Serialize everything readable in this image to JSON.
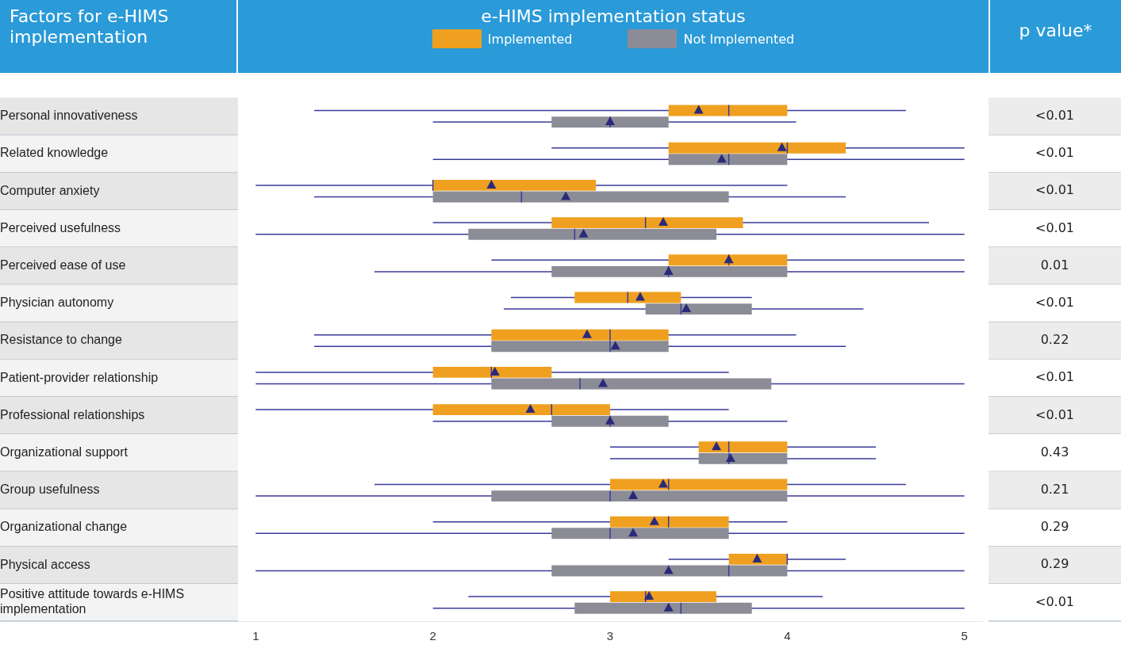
{
  "chart_data": {
    "type": "box",
    "orientation": "horizontal",
    "legend_title": "e-HIMS implementation status",
    "ylabel": "Factors for e-HIMS implementation",
    "y2label": "p value*",
    "categories": [
      "Personal innovativeness",
      "Related knowledge",
      "Computer anxiety",
      "Perceived usefulness",
      "Perceived ease of use",
      "Physician autonomy",
      "Resistance to change",
      "Patient-provider relationship",
      "Professional relationships",
      "Organizational support",
      "Group usefulness",
      "Organizational change",
      "Physical access",
      "Positive attitude towards e-HIMS implementation"
    ],
    "xlim": [
      0.9,
      5.1
    ],
    "xticks": [
      1,
      2,
      3,
      4,
      5
    ],
    "legend": "top",
    "grid": false,
    "series": [
      {
        "name": "Implemented",
        "color": "#f0a020",
        "boxes": [
          {
            "low": 1.33,
            "q1": 3.33,
            "median": 3.67,
            "q3": 4,
            "high": 4.67,
            "mean": 3.5
          },
          {
            "low": 2.67,
            "q1": 3.33,
            "median": 4,
            "q3": 4.33,
            "high": 5,
            "mean": 3.97
          },
          {
            "low": 1,
            "q1": 2,
            "median": 2,
            "q3": 2.92,
            "high": 4,
            "mean": 2.33
          },
          {
            "low": 2,
            "q1": 2.67,
            "median": 3.2,
            "q3": 3.75,
            "high": 4.8,
            "mean": 3.3
          },
          {
            "low": 2.33,
            "q1": 3.33,
            "median": 3.67,
            "q3": 4,
            "high": 5,
            "mean": 3.67
          },
          {
            "low": 2.44,
            "q1": 2.8,
            "median": 3.1,
            "q3": 3.4,
            "high": 3.8,
            "mean": 3.17
          },
          {
            "low": 1.33,
            "q1": 2.33,
            "median": 3,
            "q3": 3.33,
            "high": 4.05,
            "mean": 2.87
          },
          {
            "low": 1,
            "q1": 2,
            "median": 2.33,
            "q3": 2.67,
            "high": 3.67,
            "mean": 2.35
          },
          {
            "low": 1,
            "q1": 2,
            "median": 2.67,
            "q3": 3,
            "high": 3.67,
            "mean": 2.55
          },
          {
            "low": 3,
            "q1": 3.5,
            "median": 3.67,
            "q3": 4,
            "high": 4.5,
            "mean": 3.6
          },
          {
            "low": 1.67,
            "q1": 3,
            "median": 3.33,
            "q3": 4,
            "high": 4.67,
            "mean": 3.3
          },
          {
            "low": 2,
            "q1": 3,
            "median": 3.33,
            "q3": 3.67,
            "high": 4,
            "mean": 3.25
          },
          {
            "low": 3.33,
            "q1": 3.67,
            "median": 4,
            "q3": 4,
            "high": 4.33,
            "mean": 3.83
          },
          {
            "low": 2.2,
            "q1": 3,
            "median": 3.2,
            "q3": 3.6,
            "high": 4.2,
            "mean": 3.22
          }
        ]
      },
      {
        "name": "Not Implemented",
        "color": "#8c8c96",
        "boxes": [
          {
            "low": 2,
            "q1": 2.67,
            "median": 3,
            "q3": 3.33,
            "high": 4.05,
            "mean": 3
          },
          {
            "low": 2,
            "q1": 3.33,
            "median": 3.67,
            "q3": 4,
            "high": 5,
            "mean": 3.63
          },
          {
            "low": 1.33,
            "q1": 2,
            "median": 2.5,
            "q3": 3.67,
            "high": 4.33,
            "mean": 2.75
          },
          {
            "low": 1,
            "q1": 2.2,
            "median": 2.8,
            "q3": 3.6,
            "high": 5,
            "mean": 2.85
          },
          {
            "low": 1.67,
            "q1": 2.67,
            "median": 3.33,
            "q3": 4,
            "high": 5,
            "mean": 3.33
          },
          {
            "low": 2.4,
            "q1": 3.2,
            "median": 3.4,
            "q3": 3.8,
            "high": 4.43,
            "mean": 3.43
          },
          {
            "low": 1.33,
            "q1": 2.33,
            "median": 3,
            "q3": 3.33,
            "high": 4.33,
            "mean": 3.03
          },
          {
            "low": 1,
            "q1": 2.33,
            "median": 2.83,
            "q3": 3.91,
            "high": 5,
            "mean": 2.96
          },
          {
            "low": 2,
            "q1": 2.67,
            "median": 3,
            "q3": 3.33,
            "high": 4,
            "mean": 3
          },
          {
            "low": 3,
            "q1": 3.5,
            "median": 3.67,
            "q3": 4,
            "high": 4.5,
            "mean": 3.68
          },
          {
            "low": 1,
            "q1": 2.33,
            "median": 3,
            "q3": 4,
            "high": 5,
            "mean": 3.13
          },
          {
            "low": 1,
            "q1": 2.67,
            "median": 3,
            "q3": 3.67,
            "high": 5,
            "mean": 3.13
          },
          {
            "low": 1,
            "q1": 2.67,
            "median": 3.67,
            "q3": 4,
            "high": 5,
            "mean": 3.33
          },
          {
            "low": 2,
            "q1": 2.8,
            "median": 3.4,
            "q3": 3.8,
            "high": 5,
            "mean": 3.33
          }
        ]
      }
    ],
    "annotations": [
      "<0.01",
      "<0.01",
      "<0.01",
      "<0.01",
      "0.01",
      "<0.01",
      "0.22",
      "<0.01",
      "<0.01",
      "0.43",
      "0.21",
      "0.29",
      "0.29",
      "<0.01"
    ]
  }
}
